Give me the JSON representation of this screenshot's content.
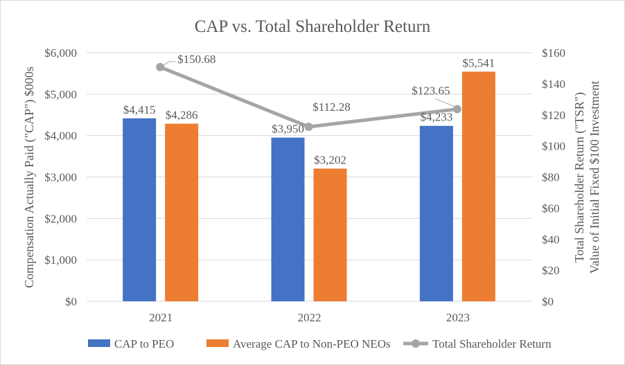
{
  "chart_data": {
    "type": "bar",
    "title": "CAP vs. Total Shareholder Return",
    "categories": [
      "2021",
      "2022",
      "2023"
    ],
    "ylabel": "Compensation Actually Paid (\"CAP\") $000s",
    "y2label_line1": "Total Shareholder Return (\"TSR\")",
    "y2label_line2": "Value of Initial Fixed $100 Investment",
    "ylim": [
      0,
      6000
    ],
    "y2lim": [
      0,
      160
    ],
    "yticks": [
      "$0",
      "$1,000",
      "$2,000",
      "$3,000",
      "$4,000",
      "$5,000",
      "$6,000"
    ],
    "y2ticks": [
      "$0",
      "$20",
      "$40",
      "$60",
      "$80",
      "$100",
      "$120",
      "$140",
      "$160"
    ],
    "grid": true,
    "legend_position": "bottom",
    "series": [
      {
        "name": "CAP to PEO",
        "type": "bar",
        "axis": "left",
        "color": "#4472C4",
        "values": [
          4415,
          3950,
          4233
        ],
        "labels": [
          "$4,415",
          "$3,950",
          "$4,233"
        ]
      },
      {
        "name": "Average CAP to Non-PEO NEOs",
        "type": "bar",
        "axis": "left",
        "color": "#ED7D31",
        "values": [
          4286,
          3202,
          5541
        ],
        "labels": [
          "$4,286",
          "$3,202",
          "$5,541"
        ]
      },
      {
        "name": "Total Shareholder Return",
        "type": "line",
        "axis": "right",
        "color": "#A5A5A5",
        "values": [
          150.68,
          112.28,
          123.65
        ],
        "labels": [
          "$150.68",
          "$112.28",
          "$123.65"
        ]
      }
    ]
  }
}
